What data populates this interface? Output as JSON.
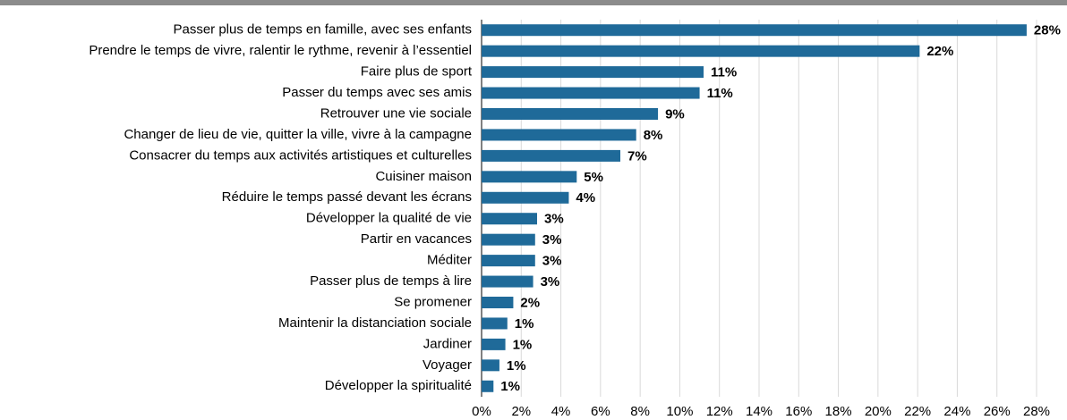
{
  "chart_data": {
    "type": "hbar",
    "categories": [
      "Passer plus de temps en famille, avec ses enfants",
      "Prendre le temps de vivre, ralentir le rythme, revenir à l’essentiel",
      "Faire plus de sport",
      "Passer du temps avec ses amis",
      "Retrouver une vie sociale",
      "Changer de lieu de vie, quitter la ville, vivre à la campagne",
      "Consacrer du temps aux activités artistiques et culturelles",
      "Cuisiner maison",
      "Réduire le temps passé devant les écrans",
      "Développer la qualité de vie",
      "Partir en vacances",
      "Méditer",
      "Passer plus de temps à lire",
      "Se promener",
      "Maintenir la distanciation sociale",
      "Jardiner",
      "Voyager",
      "Développer la spiritualité"
    ],
    "values": [
      27.5,
      22.1,
      11.2,
      11.0,
      8.9,
      7.8,
      7.0,
      4.8,
      4.4,
      2.8,
      2.7,
      2.7,
      2.6,
      1.6,
      1.3,
      1.2,
      0.9,
      0.6
    ],
    "value_labels": [
      "28%",
      "22%",
      "11%",
      "11%",
      "9%",
      "8%",
      "7%",
      "5%",
      "4%",
      "3%",
      "3%",
      "3%",
      "3%",
      "2%",
      "1%",
      "1%",
      "1%",
      "1%"
    ],
    "color": "#1f6a99",
    "xlim": [
      0,
      28
    ],
    "xticks": [
      {
        "value": 0,
        "label": "0%"
      },
      {
        "value": 2,
        "label": "2%"
      },
      {
        "value": 4,
        "label": "4%"
      },
      {
        "value": 6,
        "label": "6%"
      },
      {
        "value": 8,
        "label": "8%"
      },
      {
        "value": 10,
        "label": "10%"
      },
      {
        "value": 12,
        "label": "12%"
      },
      {
        "value": 14,
        "label": "14%"
      },
      {
        "value": 16,
        "label": "16%"
      },
      {
        "value": 18,
        "label": "18%"
      },
      {
        "value": 20,
        "label": "20%"
      },
      {
        "value": 22,
        "label": "22%"
      },
      {
        "value": 24,
        "label": "24%"
      },
      {
        "value": 26,
        "label": "26%"
      },
      {
        "value": 28,
        "label": "28%"
      }
    ],
    "grid": true
  }
}
